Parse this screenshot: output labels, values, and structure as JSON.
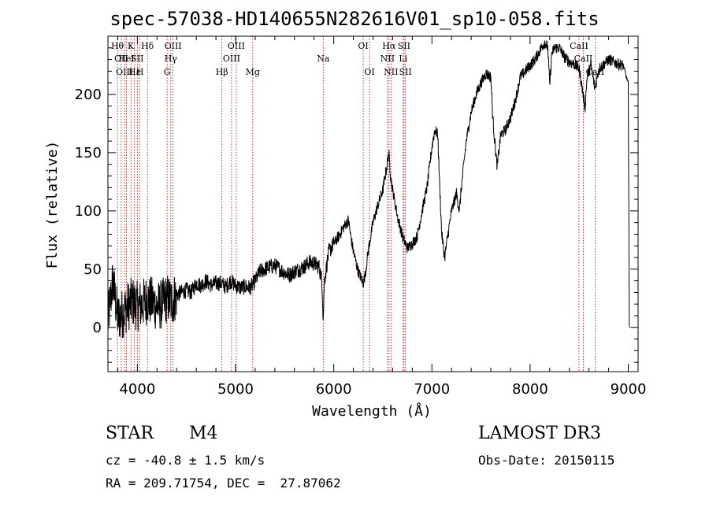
{
  "chart_data": {
    "type": "line",
    "title": "spec-57038-HD140655N282616V01_sp10-058.fits",
    "xlabel": "Wavelength (Å)",
    "ylabel": "Flux (relative)",
    "xlim": [
      3700,
      9100
    ],
    "ylim": [
      -38,
      250
    ],
    "xticks": [
      4000,
      5000,
      6000,
      7000,
      8000,
      9000
    ],
    "yticks": [
      0,
      50,
      100,
      150,
      200
    ],
    "series": [
      {
        "name": "flux",
        "anchors": [
          [
            3700,
            5
          ],
          [
            3750,
            40
          ],
          [
            3800,
            8
          ],
          [
            3850,
            12
          ],
          [
            3900,
            18
          ],
          [
            3950,
            22
          ],
          [
            4000,
            18
          ],
          [
            4050,
            20
          ],
          [
            4100,
            24
          ],
          [
            4150,
            22
          ],
          [
            4200,
            18
          ],
          [
            4250,
            20
          ],
          [
            4300,
            25
          ],
          [
            4350,
            22
          ],
          [
            4400,
            28
          ],
          [
            4450,
            30
          ],
          [
            4500,
            32
          ],
          [
            4550,
            30
          ],
          [
            4600,
            38
          ],
          [
            4650,
            36
          ],
          [
            4700,
            40
          ],
          [
            4750,
            36
          ],
          [
            4800,
            38
          ],
          [
            4850,
            38
          ],
          [
            4900,
            35
          ],
          [
            4950,
            40
          ],
          [
            5000,
            36
          ],
          [
            5050,
            34
          ],
          [
            5100,
            35
          ],
          [
            5150,
            34
          ],
          [
            5200,
            40
          ],
          [
            5250,
            48
          ],
          [
            5300,
            50
          ],
          [
            5350,
            52
          ],
          [
            5400,
            53
          ],
          [
            5450,
            50
          ],
          [
            5500,
            47
          ],
          [
            5550,
            45
          ],
          [
            5600,
            48
          ],
          [
            5650,
            50
          ],
          [
            5700,
            52
          ],
          [
            5750,
            56
          ],
          [
            5800,
            55
          ],
          [
            5850,
            52
          ],
          [
            5880,
            40
          ],
          [
            5893,
            6
          ],
          [
            5905,
            40
          ],
          [
            5950,
            65
          ],
          [
            6000,
            72
          ],
          [
            6050,
            78
          ],
          [
            6100,
            86
          ],
          [
            6150,
            92
          ],
          [
            6170,
            80
          ],
          [
            6200,
            65
          ],
          [
            6250,
            48
          ],
          [
            6300,
            38
          ],
          [
            6320,
            45
          ],
          [
            6350,
            65
          ],
          [
            6400,
            90
          ],
          [
            6450,
            105
          ],
          [
            6500,
            118
          ],
          [
            6540,
            138
          ],
          [
            6560,
            150
          ],
          [
            6580,
            130
          ],
          [
            6600,
            118
          ],
          [
            6650,
            95
          ],
          [
            6700,
            78
          ],
          [
            6750,
            68
          ],
          [
            6800,
            72
          ],
          [
            6850,
            78
          ],
          [
            6900,
            100
          ],
          [
            6950,
            120
          ],
          [
            7000,
            155
          ],
          [
            7030,
            170
          ],
          [
            7060,
            165
          ],
          [
            7080,
            120
          ],
          [
            7100,
            80
          ],
          [
            7130,
            60
          ],
          [
            7160,
            78
          ],
          [
            7200,
            100
          ],
          [
            7250,
            115
          ],
          [
            7280,
            100
          ],
          [
            7300,
            120
          ],
          [
            7350,
            160
          ],
          [
            7400,
            185
          ],
          [
            7450,
            200
          ],
          [
            7500,
            210
          ],
          [
            7550,
            218
          ],
          [
            7600,
            215
          ],
          [
            7620,
            180
          ],
          [
            7650,
            150
          ],
          [
            7665,
            138
          ],
          [
            7680,
            150
          ],
          [
            7700,
            165
          ],
          [
            7750,
            170
          ],
          [
            7800,
            180
          ],
          [
            7850,
            195
          ],
          [
            7900,
            215
          ],
          [
            7950,
            220
          ],
          [
            8000,
            225
          ],
          [
            8050,
            230
          ],
          [
            8100,
            238
          ],
          [
            8150,
            245
          ],
          [
            8180,
            240
          ],
          [
            8200,
            208
          ],
          [
            8220,
            235
          ],
          [
            8250,
            240
          ],
          [
            8300,
            240
          ],
          [
            8350,
            232
          ],
          [
            8400,
            228
          ],
          [
            8450,
            226
          ],
          [
            8500,
            222
          ],
          [
            8540,
            200
          ],
          [
            8560,
            188
          ],
          [
            8580,
            215
          ],
          [
            8620,
            225
          ],
          [
            8660,
            205
          ],
          [
            8700,
            222
          ],
          [
            8750,
            226
          ],
          [
            8800,
            230
          ],
          [
            8850,
            228
          ],
          [
            8900,
            226
          ],
          [
            8950,
            225
          ],
          [
            8980,
            215
          ],
          [
            9000,
            210
          ],
          [
            9010,
            0
          ]
        ]
      }
    ],
    "lines": [
      {
        "x": 3797,
        "label": "Hθ",
        "row": 1
      },
      {
        "x": 3835,
        "label": "OII",
        "row": 2
      },
      {
        "x": 3870,
        "label": "OIII",
        "row": 3
      },
      {
        "x": 3889,
        "label": "HeI",
        "row": 2
      },
      {
        "x": 3934,
        "label": "K",
        "row": 1
      },
      {
        "x": 3970,
        "label": "Hε",
        "row": 3
      },
      {
        "x": 4000,
        "label": "SII",
        "row": 2
      },
      {
        "x": 4026,
        "label": "H",
        "row": 3
      },
      {
        "x": 4102,
        "label": "Hδ",
        "row": 1
      },
      {
        "x": 4303,
        "label": "G",
        "row": 3
      },
      {
        "x": 4340,
        "label": "Hγ",
        "row": 2
      },
      {
        "x": 4363,
        "label": "OIII",
        "row": 1
      },
      {
        "x": 4861,
        "label": "Hβ",
        "row": 3
      },
      {
        "x": 4959,
        "label": "OIII",
        "row": 2
      },
      {
        "x": 5007,
        "label": "OIII",
        "row": 1
      },
      {
        "x": 5175,
        "label": "Mg",
        "row": 3
      },
      {
        "x": 5893,
        "label": "Na",
        "row": 2
      },
      {
        "x": 6300,
        "label": "OI",
        "row": 1
      },
      {
        "x": 6364,
        "label": "OI",
        "row": 3
      },
      {
        "x": 6548,
        "label": "NII",
        "row": 2
      },
      {
        "x": 6563,
        "label": "Hα",
        "row": 1
      },
      {
        "x": 6583,
        "label": "NII",
        "row": 3
      },
      {
        "x": 6707,
        "label": "Li",
        "row": 2
      },
      {
        "x": 6716,
        "label": "SII",
        "row": 1
      },
      {
        "x": 6731,
        "label": "SII",
        "row": 3
      },
      {
        "x": 8498,
        "label": "CaII",
        "row": 1
      },
      {
        "x": 8542,
        "label": "CaII",
        "row": 2
      },
      {
        "x": 8662,
        "label": "CaII",
        "row": 3
      }
    ],
    "line_color": "#000000",
    "marker_color": "#b00000"
  },
  "info": {
    "object_class": "STAR",
    "subclass": "M4",
    "survey": "LAMOST DR3",
    "velocity": "cz = -40.8 ± 1.5 km/s",
    "obs_date": "Obs-Date: 20150115",
    "coords": "RA = 209.71754, DEC =  27.87062"
  }
}
